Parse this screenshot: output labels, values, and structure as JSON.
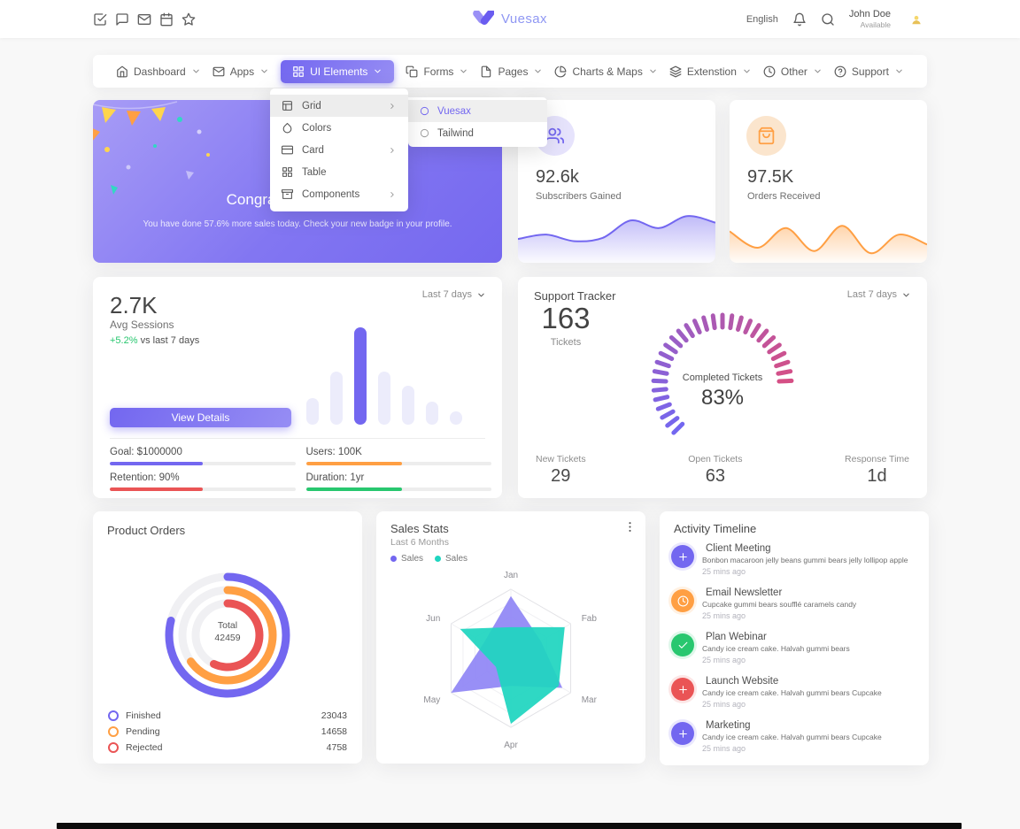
{
  "header": {
    "brand": "Vuesax",
    "language": "English",
    "user_name": "John Doe",
    "user_status": "Available"
  },
  "nav": {
    "items": [
      {
        "label": "Dashboard",
        "icon": "home"
      },
      {
        "label": "Apps",
        "icon": "mail"
      },
      {
        "label": "UI Elements",
        "icon": "grid"
      },
      {
        "label": "Forms",
        "icon": "copy"
      },
      {
        "label": "Pages",
        "icon": "file"
      },
      {
        "label": "Charts & Maps",
        "icon": "pie-chart"
      },
      {
        "label": "Extenstion",
        "icon": "layers"
      },
      {
        "label": "Other",
        "icon": "clock"
      },
      {
        "label": "Support",
        "icon": "help-circle"
      }
    ]
  },
  "dropdown": {
    "items": [
      {
        "label": "Grid",
        "icon": "layout"
      },
      {
        "label": "Colors",
        "icon": "droplet"
      },
      {
        "label": "Card",
        "icon": "credit-card"
      },
      {
        "label": "Table",
        "icon": "table-grid"
      },
      {
        "label": "Components",
        "icon": "archive"
      }
    ],
    "submenu": [
      {
        "label": "Vuesax"
      },
      {
        "label": "Tailwind"
      }
    ]
  },
  "congrats": {
    "title": "Congratulations John",
    "subtitle": "You have done 57.6% more sales today. Check your new badge in your profile."
  },
  "subscribers": {
    "value": "92.6k",
    "label": "Subscribers Gained"
  },
  "orders": {
    "value": "97.5K",
    "label": "Orders Received"
  },
  "avg_sessions": {
    "value": "2.7K",
    "label": "Avg Sessions",
    "delta": "+5.2%",
    "delta_suffix": "vs last 7 days",
    "period": "Last 7 days",
    "button": "View Details",
    "stats": [
      {
        "label": "Goal: $1000000",
        "color": "#7367f0",
        "pct": 50
      },
      {
        "label": "Users: 100K",
        "color": "#ff9f43",
        "pct": 52
      },
      {
        "label": "Retention: 90%",
        "color": "#ea5455",
        "pct": 50
      },
      {
        "label": "Duration: 1yr",
        "color": "#28c76f",
        "pct": 52
      }
    ]
  },
  "support_tracker": {
    "title": "Support Tracker",
    "period": "Last 7 days",
    "tickets_value": "163",
    "tickets_label": "Tickets",
    "gauge_label": "Completed Tickets",
    "gauge_value": "83%",
    "footer": [
      {
        "label": "New Tickets",
        "value": "29"
      },
      {
        "label": "Open Tickets",
        "value": "63"
      },
      {
        "label": "Response Time",
        "value": "1d"
      }
    ]
  },
  "product_orders": {
    "title": "Product Orders",
    "center_label": "Total",
    "center_value": "42459",
    "legend": [
      {
        "label": "Finished",
        "value": "23043",
        "color": "#7367f0"
      },
      {
        "label": "Pending",
        "value": "14658",
        "color": "#ff9f43"
      },
      {
        "label": "Rejected",
        "value": "4758",
        "color": "#ea5455"
      }
    ]
  },
  "sales_stats": {
    "title": "Sales Stats",
    "subtitle": "Last 6 Months",
    "legend": [
      {
        "label": "Sales",
        "color": "#7367f0"
      },
      {
        "label": "Sales",
        "color": "#1fd5c0"
      }
    ]
  },
  "activity_timeline": {
    "title": "Activity Timeline",
    "items": [
      {
        "title": "Client Meeting",
        "desc": "Bonbon macaroon jelly beans gummi bears jelly lollipop apple",
        "time": "25 mins ago",
        "color": "#7367f0",
        "icon": "plus"
      },
      {
        "title": "Email Newsletter",
        "desc": "Cupcake gummi bears soufflé caramels candy",
        "time": "25 mins ago",
        "color": "#ff9f43",
        "icon": "clock"
      },
      {
        "title": "Plan Webinar",
        "desc": "Candy ice cream cake. Halvah gummi bears",
        "time": "25 mins ago",
        "color": "#28c76f",
        "icon": "check"
      },
      {
        "title": "Launch Website",
        "desc": "Candy ice cream cake. Halvah gummi bears Cupcake",
        "time": "25 mins ago",
        "color": "#ea5455",
        "icon": "plus"
      },
      {
        "title": "Marketing",
        "desc": "Candy ice cream cake. Halvah gummi bears Cupcake",
        "time": "25 mins ago",
        "color": "#7367f0",
        "icon": "plus"
      }
    ]
  },
  "chart_data": [
    {
      "id": "subscribers-area",
      "type": "area",
      "title": "Subscribers Gained sparkline",
      "color": "#7367f0",
      "values": [
        38,
        46,
        34,
        40,
        72,
        58,
        80,
        68
      ],
      "x_axis": "hidden",
      "y_axis": "hidden"
    },
    {
      "id": "orders-area",
      "type": "area",
      "title": "Orders Received sparkline",
      "color": "#ff9f43",
      "values": [
        52,
        22,
        58,
        16,
        62,
        12,
        46,
        28
      ],
      "x_axis": "hidden",
      "y_axis": "hidden"
    },
    {
      "id": "sessions-bars",
      "type": "bar",
      "title": "Avg Sessions last 7 days",
      "values": [
        27,
        55,
        100,
        55,
        40,
        24,
        14
      ],
      "highlight_index": 2,
      "color_active": "#7367f0",
      "color_muted": "#ececfb",
      "x_axis": "hidden",
      "y_axis": "hidden"
    },
    {
      "id": "support-gauge",
      "type": "radial-gauge",
      "title": "Completed Tickets",
      "percent": 83,
      "sweep_deg": 270,
      "total_ticks": 35,
      "color_start": "#7367f0",
      "color_end": "#ea4a6e"
    },
    {
      "id": "orders-rings",
      "type": "radial-rings",
      "title": "Product Orders",
      "center": {
        "label": "Total",
        "value": 42459
      },
      "rings": [
        {
          "name": "Finished",
          "value": 23043,
          "pct": 79,
          "color": "#7367f0"
        },
        {
          "name": "Pending",
          "value": 14658,
          "pct": 65,
          "color": "#ff9f43"
        },
        {
          "name": "Rejected",
          "value": 4758,
          "pct": 57,
          "color": "#ea5455"
        }
      ]
    },
    {
      "id": "sales-radar",
      "type": "radar",
      "title": "Sales Stats Last 6 Months",
      "categories": [
        "Jan",
        "Fab",
        "Mar",
        "Apr",
        "May",
        "Jun"
      ],
      "series": [
        {
          "name": "Sales",
          "color": "#9087f5",
          "values": [
            90,
            50,
            86,
            40,
            100,
            45
          ]
        },
        {
          "name": "Sales",
          "color": "#1fd5c0",
          "values": [
            45,
            90,
            80,
            95,
            25,
            85
          ]
        }
      ],
      "max": 100,
      "grid": "hexagon"
    }
  ]
}
